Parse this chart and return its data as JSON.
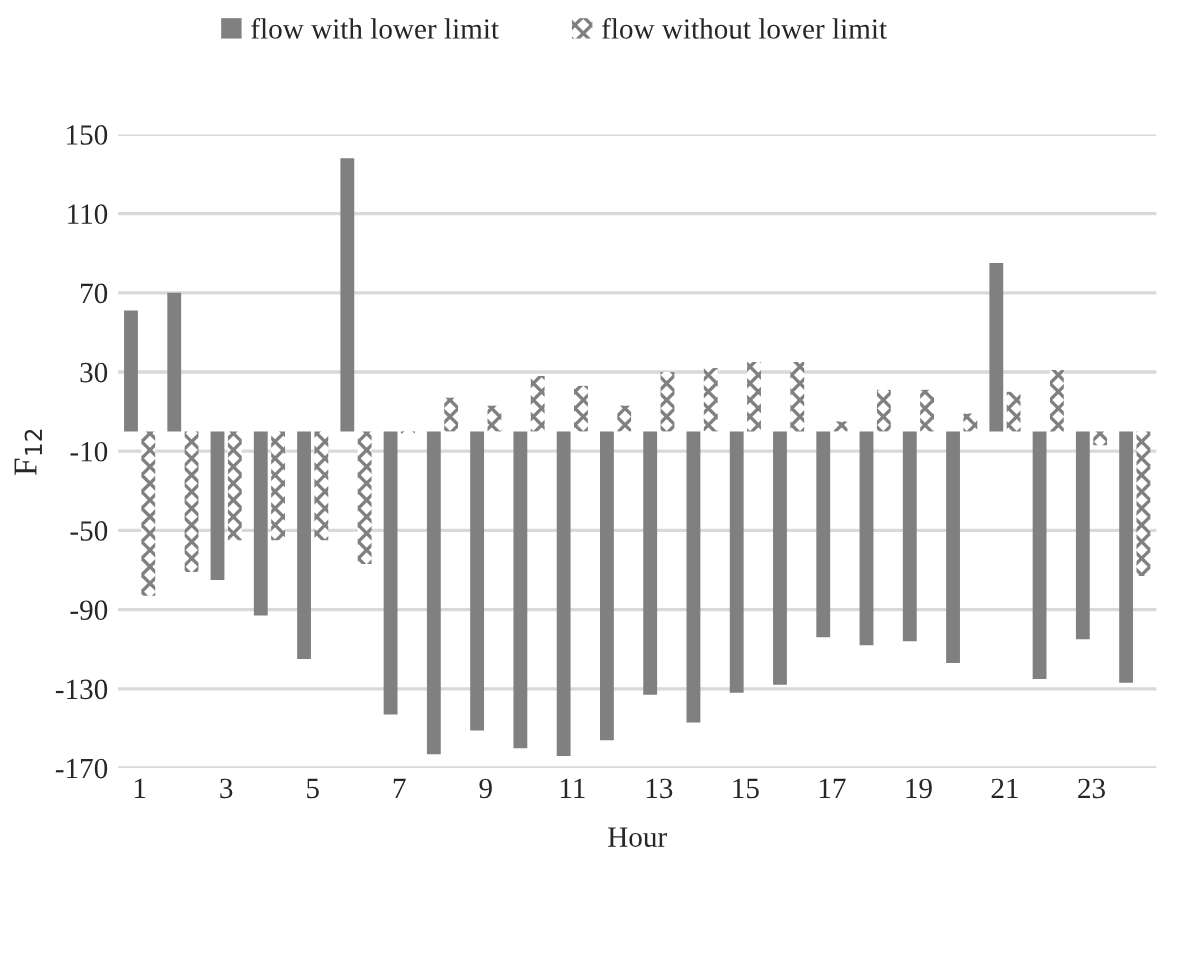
{
  "chart_data": {
    "type": "bar",
    "xlabel": "Hour",
    "ylabel": "F$_{12}$",
    "categories": [
      "1",
      null,
      "3",
      null,
      "5",
      null,
      "7",
      null,
      "9",
      null,
      "11",
      null,
      "13",
      null,
      "15",
      null,
      "17",
      null,
      "19",
      null,
      "21",
      null,
      "23",
      null
    ],
    "series": [
      {
        "name": "flow with lower limit",
        "color": "#808080",
        "values": [
          61,
          70,
          -75,
          -93,
          -115,
          138,
          -143,
          -163,
          -151,
          -160,
          -164,
          -156,
          -133,
          -147,
          -132,
          -128,
          -104,
          -108,
          -106,
          -117,
          85,
          -125,
          -105,
          -127
        ]
      },
      {
        "name": "flow without lower limit",
        "color": "#808080",
        "values": [
          -83,
          -71,
          -55,
          -55,
          -55,
          -67,
          -1,
          17,
          13,
          28,
          23,
          13,
          30,
          32,
          35,
          35,
          5,
          21,
          21,
          9,
          20,
          31,
          -7,
          -73
        ]
      }
    ],
    "ylim": [
      -170,
      150
    ],
    "yticks": [
      -170,
      -130,
      -90,
      -50,
      -10,
      30,
      70,
      110,
      150
    ],
    "grid": "y",
    "legend": "top"
  }
}
